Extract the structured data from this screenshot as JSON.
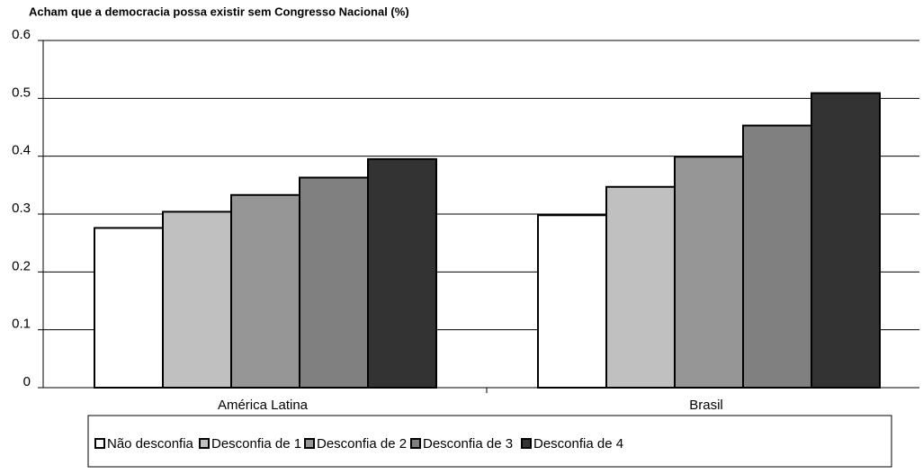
{
  "chart_data": {
    "type": "bar",
    "title": "Acham que a democracia possa existir sem Congresso Nacional (%)",
    "categories": [
      "América Latina",
      "Brasil"
    ],
    "series": [
      {
        "name": "Não desconfia",
        "color": "#ffffff",
        "values": [
          0.276,
          0.298
        ]
      },
      {
        "name": "Desconfia de 1",
        "color": "#c0c0c0",
        "values": [
          0.304,
          0.347
        ]
      },
      {
        "name": "Desconfia de 2",
        "color": "#969696",
        "values": [
          0.333,
          0.399
        ]
      },
      {
        "name": "Desconfia de 3",
        "color": "#808080",
        "values": [
          0.363,
          0.453
        ]
      },
      {
        "name": "Desconfia de 4",
        "color": "#333333",
        "values": [
          0.395,
          0.509
        ]
      }
    ],
    "ylim": [
      0,
      0.6
    ],
    "yticks": [
      0,
      0.1,
      0.2,
      0.3,
      0.4,
      0.5,
      0.6
    ],
    "grid": true,
    "legend": "bottom"
  }
}
